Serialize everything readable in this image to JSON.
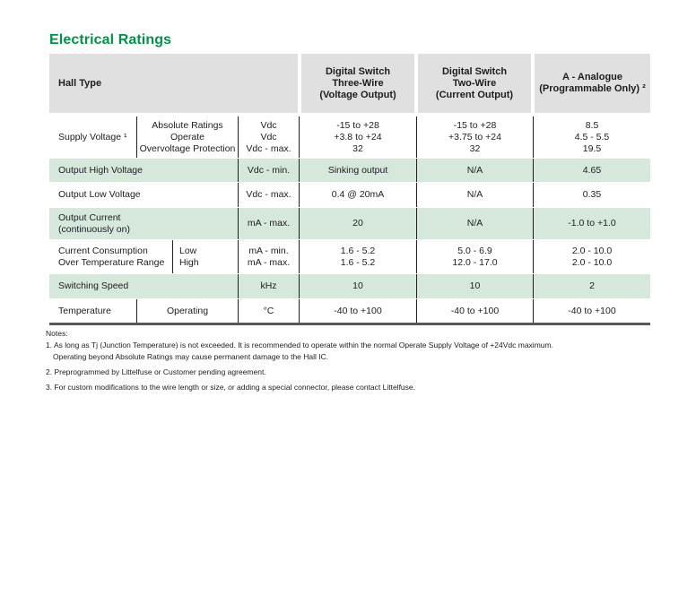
{
  "title": "Electrical Ratings",
  "colors": {
    "accent_green": "#009347",
    "row_shade_green": "#d6e7dc",
    "header_gray": "#e0e0e1",
    "table_border": "#231f20",
    "table_bottom_rule": "#57585b"
  },
  "table": {
    "header": {
      "hall_type": "Hall Type",
      "three_wire": "Digital Switch\nThree-Wire\n(Voltage Output)",
      "two_wire": "Digital Switch\nTwo-Wire\n(Current Output)",
      "analogue": "A - Analogue\n(Programmable Only) ²"
    },
    "rows": [
      {
        "label": "Supply Voltage ¹",
        "sub": "Absolute Ratings\nOperate\nOvervoltage Protection",
        "unit": "Vdc\nVdc\nVdc - max.",
        "three_wire": "-15 to +28\n+3.8 to +24\n32",
        "two_wire": "-15 to +28\n+3.75 to +24\n32",
        "analogue": "8.5\n4.5 - 5.5\n19.5"
      },
      {
        "label": "Output High Voltage",
        "unit": "Vdc - min.",
        "three_wire": "Sinking output",
        "two_wire": "N/A",
        "analogue": "4.65"
      },
      {
        "label": "Output Low Voltage",
        "unit": "Vdc - max.",
        "three_wire": "0.4 @ 20mA",
        "two_wire": "N/A",
        "analogue": "0.35"
      },
      {
        "label": "Output Current\n(continuously on)",
        "unit": "mA - max.",
        "three_wire": "20",
        "two_wire": "N/A",
        "analogue": "-1.0 to +1.0"
      },
      {
        "label": "Current Consumption\nOver Temperature Range",
        "sub": "Low\nHigh",
        "unit": "mA - min.\nmA - max.",
        "three_wire": "1.6 - 5.2\n1.6 - 5.2",
        "two_wire": "5.0 - 6.9\n12.0 - 17.0",
        "analogue": "2.0 - 10.0\n2.0 - 10.0"
      },
      {
        "label": "Switching Speed",
        "unit": "kHz",
        "three_wire": "10",
        "two_wire": "10",
        "analogue": "2"
      },
      {
        "label": "Temperature",
        "sub": "Operating",
        "unit": "°C",
        "three_wire": "-40 to +100",
        "two_wire": "-40 to +100",
        "analogue": "-40 to +100"
      }
    ]
  },
  "notes": {
    "heading": "Notes:",
    "note1_line1": "1. As long as Tj (Junction Temperature) is not exceeded. It is recommended to operate within the normal Operate Supply Voltage of +24Vdc maximum.",
    "note1_line2": "Operating beyond Absolute Ratings may cause permanent damage to the Hall IC.",
    "note2": "2. Preprogrammed by Littelfuse or Customer pending agreement.",
    "note3": "3. For custom modifications to the wire length or size, or adding a special connector, please contact Littelfuse."
  }
}
